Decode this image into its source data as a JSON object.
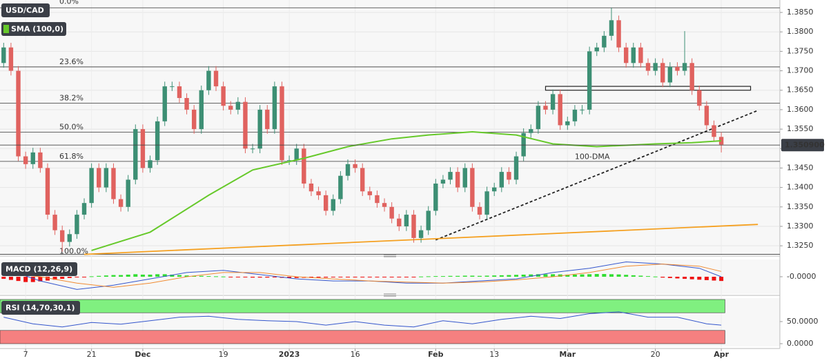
{
  "chart_data": {
    "type": "candlestick",
    "title": "USD/CAD",
    "colors": {
      "up": "#3d8f74",
      "down": "#e0625f"
    },
    "open": [
      1.372,
      1.376,
      1.37,
      1.348,
      1.346,
      1.349,
      1.345,
      1.333,
      1.329,
      1.326,
      1.328,
      1.333,
      1.336,
      1.345,
      1.34,
      1.345,
      1.337,
      1.335,
      1.342,
      1.355,
      1.345,
      1.347,
      1.357,
      1.366,
      1.366,
      1.363,
      1.36,
      1.355,
      1.365,
      1.37,
      1.366,
      1.361,
      1.36,
      1.362,
      1.35,
      1.35,
      1.36,
      1.355,
      1.366,
      1.347,
      1.347,
      1.35,
      1.341,
      1.339,
      1.338,
      1.334,
      1.337,
      1.343,
      1.346,
      1.345,
      1.339,
      1.338,
      1.336,
      1.335,
      1.332,
      1.33,
      1.333,
      1.327,
      1.329,
      1.334,
      1.341,
      1.342,
      1.344,
      1.34,
      1.345,
      1.335,
      1.333,
      1.339,
      1.34,
      1.344,
      1.342,
      1.348,
      1.354,
      1.355,
      1.361,
      1.36,
      1.364,
      1.356,
      1.357,
      1.36,
      1.36,
      1.375,
      1.376,
      1.379,
      1.383,
      1.376,
      1.372,
      1.376,
      1.372,
      1.37,
      1.372,
      1.367,
      1.371,
      1.37,
      1.372,
      1.365,
      1.361,
      1.356,
      1.353
    ],
    "high": [
      1.3772,
      1.3772,
      1.3712,
      1.3492,
      1.3502,
      1.3502,
      1.3462,
      1.3342,
      1.3302,
      1.3292,
      1.3342,
      1.3372,
      1.3462,
      1.3462,
      1.3462,
      1.3462,
      1.3382,
      1.3432,
      1.3562,
      1.3562,
      1.3482,
      1.3582,
      1.3672,
      1.3672,
      1.3672,
      1.3642,
      1.3612,
      1.3662,
      1.3712,
      1.3712,
      1.3672,
      1.3622,
      1.3632,
      1.3632,
      1.3512,
      1.3612,
      1.3612,
      1.3672,
      1.3672,
      1.3482,
      1.3512,
      1.3512,
      1.3422,
      1.3402,
      1.3392,
      1.3382,
      1.3442,
      1.3472,
      1.3472,
      1.3462,
      1.3402,
      1.3392,
      1.3372,
      1.3362,
      1.3332,
      1.3342,
      1.3342,
      1.3302,
      1.3352,
      1.3422,
      1.3432,
      1.3452,
      1.3452,
      1.3462,
      1.3462,
      1.3362,
      1.3402,
      1.3412,
      1.3452,
      1.3452,
      1.3492,
      1.3552,
      1.3562,
      1.3622,
      1.3622,
      1.3652,
      1.3652,
      1.3582,
      1.3612,
      1.3612,
      1.3762,
      1.3772,
      1.3802,
      1.3862,
      1.3842,
      1.3772,
      1.3772,
      1.3772,
      1.3732,
      1.3732,
      1.3732,
      1.3722,
      1.3722,
      1.3802,
      1.3732,
      1.3662,
      1.3622,
      1.3572,
      1.3542
    ],
    "low": [
      1.3708,
      1.3688,
      1.3468,
      1.3448,
      1.3448,
      1.3438,
      1.3318,
      1.3278,
      1.3235,
      1.3248,
      1.3268,
      1.3318,
      1.3348,
      1.3388,
      1.3388,
      1.3358,
      1.3338,
      1.3338,
      1.3408,
      1.3438,
      1.3438,
      1.3458,
      1.3558,
      1.3648,
      1.3618,
      1.3588,
      1.3538,
      1.3538,
      1.3638,
      1.3648,
      1.3598,
      1.3588,
      1.3588,
      1.3488,
      1.3488,
      1.3488,
      1.3538,
      1.3538,
      1.3458,
      1.3458,
      1.3458,
      1.3398,
      1.3378,
      1.3368,
      1.3328,
      1.3328,
      1.3358,
      1.3418,
      1.3438,
      1.3378,
      1.3368,
      1.3348,
      1.3338,
      1.3308,
      1.3288,
      1.3288,
      1.3258,
      1.3258,
      1.3278,
      1.3328,
      1.3398,
      1.3408,
      1.3388,
      1.3388,
      1.3338,
      1.3318,
      1.3318,
      1.3378,
      1.3388,
      1.3408,
      1.3408,
      1.3468,
      1.3528,
      1.3538,
      1.3588,
      1.3588,
      1.3548,
      1.3548,
      1.3558,
      1.3588,
      1.3588,
      1.3738,
      1.3748,
      1.3778,
      1.3748,
      1.3708,
      1.3708,
      1.3708,
      1.3688,
      1.3688,
      1.3658,
      1.3658,
      1.3688,
      1.3688,
      1.3638,
      1.3598,
      1.3548,
      1.3518,
      1.349
    ],
    "close": [
      1.376,
      1.37,
      1.348,
      1.346,
      1.349,
      1.345,
      1.333,
      1.329,
      1.326,
      1.328,
      1.333,
      1.336,
      1.345,
      1.34,
      1.345,
      1.337,
      1.335,
      1.342,
      1.355,
      1.345,
      1.347,
      1.357,
      1.366,
      1.366,
      1.363,
      1.36,
      1.355,
      1.365,
      1.37,
      1.366,
      1.361,
      1.36,
      1.362,
      1.35,
      1.35,
      1.36,
      1.355,
      1.366,
      1.347,
      1.347,
      1.35,
      1.341,
      1.339,
      1.338,
      1.334,
      1.337,
      1.343,
      1.346,
      1.345,
      1.339,
      1.338,
      1.336,
      1.335,
      1.332,
      1.33,
      1.333,
      1.327,
      1.329,
      1.334,
      1.341,
      1.342,
      1.344,
      1.34,
      1.345,
      1.335,
      1.333,
      1.339,
      1.34,
      1.344,
      1.342,
      1.348,
      1.354,
      1.355,
      1.361,
      1.36,
      1.364,
      1.356,
      1.357,
      1.36,
      1.36,
      1.375,
      1.376,
      1.379,
      1.383,
      1.376,
      1.372,
      1.376,
      1.372,
      1.37,
      1.372,
      1.367,
      1.371,
      1.37,
      1.372,
      1.365,
      1.361,
      1.356,
      1.353,
      1.351
    ],
    "xlim": [
      -0.5,
      106
    ],
    "xticks": [
      {
        "value": 3,
        "label": "7"
      },
      {
        "value": 12,
        "label": "21"
      },
      {
        "value": 19,
        "label": "Dec"
      },
      {
        "value": 30,
        "label": "19"
      },
      {
        "value": 39,
        "label": "2023"
      },
      {
        "value": 48,
        "label": "16"
      },
      {
        "value": 59,
        "label": "Feb"
      },
      {
        "value": 67,
        "label": "13"
      },
      {
        "value": 77,
        "label": "Mar"
      },
      {
        "value": 89,
        "label": "20"
      },
      {
        "value": 98,
        "label": "Apr"
      }
    ],
    "ylim": [
      1.3229,
      1.3882
    ],
    "yticks": [
      {
        "value": 1.325,
        "label": "1.3250"
      },
      {
        "value": 1.33,
        "label": "1.3300"
      },
      {
        "value": 1.335,
        "label": "1.3350"
      },
      {
        "value": 1.34,
        "label": "1.3400"
      },
      {
        "value": 1.345,
        "label": "1.3450"
      },
      {
        "value": 1.35,
        "label": "1.3500"
      },
      {
        "value": 1.355,
        "label": "1.3550"
      },
      {
        "value": 1.36,
        "label": "1.3600"
      },
      {
        "value": 1.365,
        "label": "1.3650"
      },
      {
        "value": 1.37,
        "label": "1.3700"
      },
      {
        "value": 1.375,
        "label": "1.3750"
      },
      {
        "value": 1.38,
        "label": "1.3800"
      },
      {
        "value": 1.385,
        "label": "1.3850"
      }
    ],
    "grid": true,
    "current_price": {
      "value": 1.3509,
      "label": "1.350900"
    },
    "sma": {
      "name": "SMA (100,0)",
      "color": "#66c92a",
      "x": [
        12,
        20,
        28,
        34,
        41,
        47,
        53,
        58,
        64,
        70,
        75,
        81,
        89,
        94,
        98
      ],
      "values": [
        1.3238,
        1.3285,
        1.338,
        1.3445,
        1.3475,
        1.3505,
        1.3525,
        1.3535,
        1.3543,
        1.3535,
        1.3512,
        1.3505,
        1.3512,
        1.3515,
        1.352
      ]
    },
    "fib_levels": [
      {
        "label": "0.0%",
        "value": 1.3862
      },
      {
        "label": "23.6%",
        "value": 1.371
      },
      {
        "label": "38.2%",
        "value": 1.3617
      },
      {
        "label": "50.0%",
        "value": 1.3542
      },
      {
        "label": "61.8%",
        "value": 1.3467
      },
      {
        "label": "100.0%",
        "value": 1.3228
      }
    ],
    "trendlines": [
      {
        "x": [
          59,
          103
        ],
        "values": [
          1.3265,
          1.3598
        ],
        "color": "#222222",
        "dashed": true
      },
      {
        "x": [
          11,
          103
        ],
        "values": [
          1.3228,
          1.3305
        ],
        "color": "#f5a020",
        "dashed": false
      }
    ],
    "zone": {
      "x": [
        74,
        102
      ],
      "values": [
        1.366,
        1.365
      ]
    },
    "annotations": [
      {
        "text": "100-DMA",
        "x": 78,
        "y": 1.3478,
        "color": "#66c92a"
      }
    ],
    "macd": {
      "name": "MACD (12,26,9)",
      "ylim": [
        -0.0075,
        0.0075
      ],
      "yticks": [
        {
          "value": 0,
          "label": "-0.0000"
        }
      ],
      "histogram": [
        -0.001,
        -0.0015,
        -0.002,
        -0.0025,
        -0.0025,
        -0.0022,
        -0.0018,
        -0.0014,
        -0.001,
        -0.0006,
        -0.0003,
        -0.0002,
        0.0002,
        0.0004,
        0.0006,
        0.0008,
        0.0008,
        0.001,
        0.0012,
        0.001,
        0.001,
        0.0012,
        0.0012,
        0.001,
        0.0008,
        0.0006,
        0.0004,
        0.0004,
        0.0003,
        0.0002,
        0.0001,
        -0.0001,
        -0.0002,
        -0.0003,
        -0.0004,
        -0.0004,
        -0.0004,
        -0.0003,
        -0.0005,
        -0.0006,
        -0.0006,
        -0.0005,
        -0.0005,
        -0.0004,
        -0.0004,
        -0.0003,
        -0.0003,
        -0.0002,
        -0.0002,
        -0.0002,
        -0.0001,
        -0.0001,
        -0.0001,
        -0.0001,
        -0.0001,
        -0.0002,
        -0.0002,
        0.0001,
        0.0002,
        0.0003,
        0.0003,
        0.0004,
        0.0004,
        0.0005,
        0.0005,
        0.0004,
        0.0005,
        0.0006,
        0.0007,
        0.0008,
        0.0009,
        0.001,
        0.0011,
        0.0012,
        0.0012,
        0.0012,
        0.0011,
        0.001,
        0.001,
        0.0011,
        0.0012,
        0.0013,
        0.0013,
        0.0012,
        0.0011,
        0.0009,
        0.0007,
        0.0005,
        0.0003,
        0.0001,
        -0.0004,
        -0.0006,
        -0.0008,
        -0.001,
        -0.0012,
        -0.0014,
        -0.0016,
        -0.0018,
        -0.002
      ],
      "macd_line": {
        "color": "#3355cc",
        "x": [
          0,
          5,
          10,
          15,
          20,
          25,
          30,
          35,
          40,
          45,
          50,
          55,
          60,
          65,
          70,
          75,
          80,
          85,
          90,
          95,
          98
        ],
        "values": [
          0.004,
          -0.002,
          -0.006,
          -0.004,
          -0.001,
          0.002,
          0.003,
          0.001,
          -0.001,
          -0.002,
          -0.002,
          -0.003,
          -0.003,
          -0.002,
          -0.001,
          0.002,
          0.004,
          0.007,
          0.006,
          0.004,
          0.0
        ]
      },
      "signal_line": {
        "color": "#f08a30",
        "x": [
          0,
          5,
          10,
          15,
          20,
          25,
          30,
          35,
          40,
          45,
          50,
          55,
          60,
          65,
          70,
          75,
          80,
          85,
          90,
          95,
          98
        ],
        "values": [
          0.002,
          0.0,
          -0.003,
          -0.005,
          -0.003,
          0.0,
          0.002,
          0.002,
          0.0,
          -0.001,
          -0.002,
          -0.0025,
          -0.003,
          -0.0025,
          -0.0015,
          0.0,
          0.002,
          0.005,
          0.006,
          0.005,
          0.0025
        ]
      }
    },
    "rsi": {
      "name": "RSI (14,70,30,1)",
      "color": "#3355cc",
      "ylim": [
        0,
        100
      ],
      "yticks": [
        {
          "value": 50,
          "label": "50.0000"
        },
        {
          "value": 0,
          "label": "0.0000"
        }
      ],
      "bands": [
        {
          "range": [
            70,
            100
          ],
          "color": "#80f080"
        },
        {
          "range": [
            0,
            30
          ],
          "color": "#f58080"
        }
      ],
      "x": [
        0,
        4,
        8,
        12,
        16,
        20,
        24,
        28,
        32,
        36,
        40,
        44,
        48,
        52,
        56,
        60,
        64,
        68,
        72,
        76,
        80,
        84,
        88,
        92,
        96,
        98
      ],
      "values": [
        60,
        45,
        38,
        48,
        44,
        52,
        60,
        62,
        55,
        52,
        50,
        42,
        50,
        42,
        38,
        52,
        45,
        55,
        62,
        57,
        68,
        72,
        60,
        60,
        45,
        42
      ]
    }
  }
}
